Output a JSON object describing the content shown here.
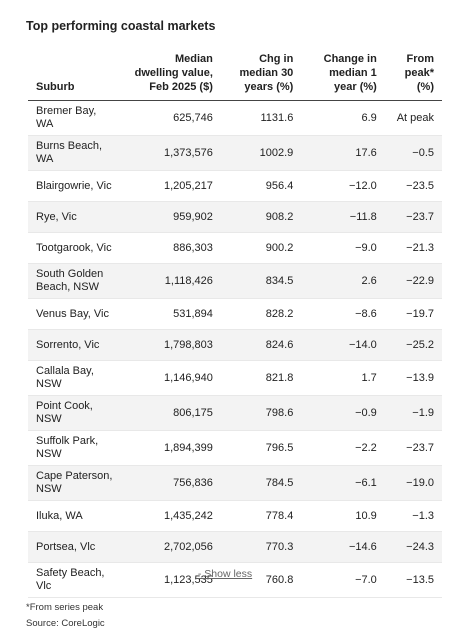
{
  "title": "Top performing coastal markets",
  "table": {
    "header": [
      "Suburb",
      "Median dwelling value, Feb 2025 ($)",
      "Chg in median 30 years (%)",
      "Change in median 1 year (%)",
      "From peak*(%)"
    ],
    "rows": [
      [
        "Bremer Bay, WA",
        "625,746",
        "1131.6",
        "6.9",
        "At peak"
      ],
      [
        "Burns Beach, WA",
        "1,373,576",
        "1002.9",
        "17.6",
        "−0.5"
      ],
      [
        "Blairgowrie, Vic",
        "1,205,217",
        "956.4",
        "−12.0",
        "−23.5"
      ],
      [
        "Rye, Vic",
        "959,902",
        "908.2",
        "−11.8",
        "−23.7"
      ],
      [
        "Tootgarook, Vic",
        "886,303",
        "900.2",
        "−9.0",
        "−21.3"
      ],
      [
        "South Golden Beach, NSW",
        "1,118,426",
        "834.5",
        "2.6",
        "−22.9"
      ],
      [
        "Venus Bay, Vic",
        "531,894",
        "828.2",
        "−8.6",
        "−19.7"
      ],
      [
        "Sorrento, Vic",
        "1,798,803",
        "824.6",
        "−14.0",
        "−25.2"
      ],
      [
        "Callala Bay, NSW",
        "1,146,940",
        "821.8",
        "1.7",
        "−13.9"
      ],
      [
        "Point Cook, NSW",
        "806,175",
        "798.6",
        "−0.9",
        "−1.9"
      ],
      [
        "Suffolk Park, NSW",
        "1,894,399",
        "796.5",
        "−2.2",
        "−23.7"
      ],
      [
        "Cape Paterson, NSW",
        "756,836",
        "784.5",
        "−6.1",
        "−19.0"
      ],
      [
        "Iluka, WA",
        "1,435,242",
        "778.4",
        "10.9",
        "−1.3"
      ],
      [
        "Portsea, Vlc",
        "2,702,056",
        "770.3",
        "−14.6",
        "−24.3"
      ],
      [
        "Safety Beach, Vlc",
        "1,123,535",
        "760.8",
        "−7.0",
        "−13.5"
      ]
    ]
  },
  "show_less": "- Show less",
  "footnotes": [
    "*From series peak",
    "Source: CoreLogic"
  ]
}
